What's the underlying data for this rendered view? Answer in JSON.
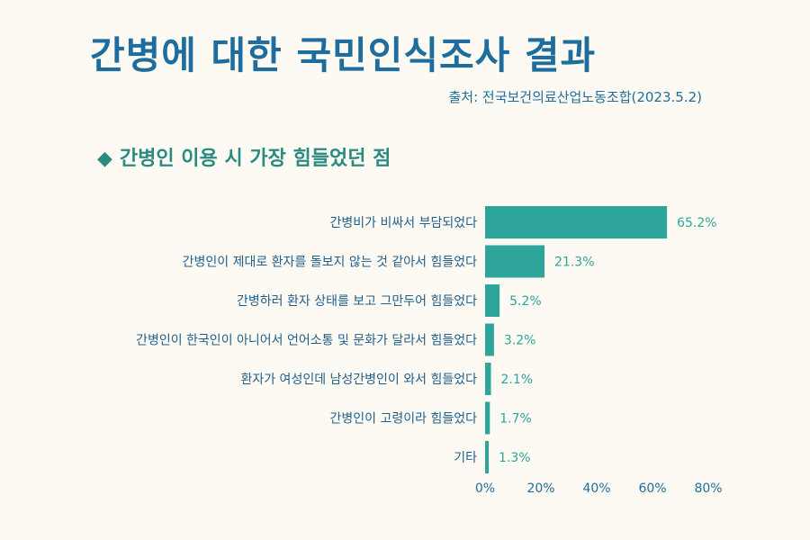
{
  "header": {
    "title": "간병에 대한 국민인식조사 결과",
    "source": "출처: 전국보건의료산업노동조합(2023.5.2)"
  },
  "subtitle": {
    "marker": "◆",
    "text": "간병인 이용 시 가장 힘들었던 점"
  },
  "colors": {
    "bar": "#2ea59a",
    "title": "#1f6d9c",
    "subtitle": "#2b8a82",
    "background": "#fdfaf3"
  },
  "chart_data": {
    "type": "bar",
    "orientation": "horizontal",
    "categories": [
      "간병비가 비싸서 부담되었다",
      "간병인이 제대로 환자를 돌보지 않는 것 같아서 힘들었다",
      "간병하러 환자 상태를 보고 그만두어 힘들었다",
      "간병인이 한국인이 아니어서 언어소통 및 문화가 달라서 힘들었다",
      "환자가 여성인데 남성간병인이 와서 힘들었다",
      "간병인이 고령이라 힘들었다",
      "기타"
    ],
    "values": [
      65.2,
      21.3,
      5.2,
      3.2,
      2.1,
      1.7,
      1.3
    ],
    "value_labels": [
      "65.2%",
      "21.3%",
      "5.2%",
      "3.2%",
      "2.1%",
      "1.7%",
      "1.3%"
    ],
    "xlim": [
      0,
      80
    ],
    "x_ticks": [
      0,
      20,
      40,
      60,
      80
    ],
    "x_tick_labels": [
      "0%",
      "20%",
      "40%",
      "60%",
      "80%"
    ],
    "grid": false,
    "legend": "none"
  }
}
